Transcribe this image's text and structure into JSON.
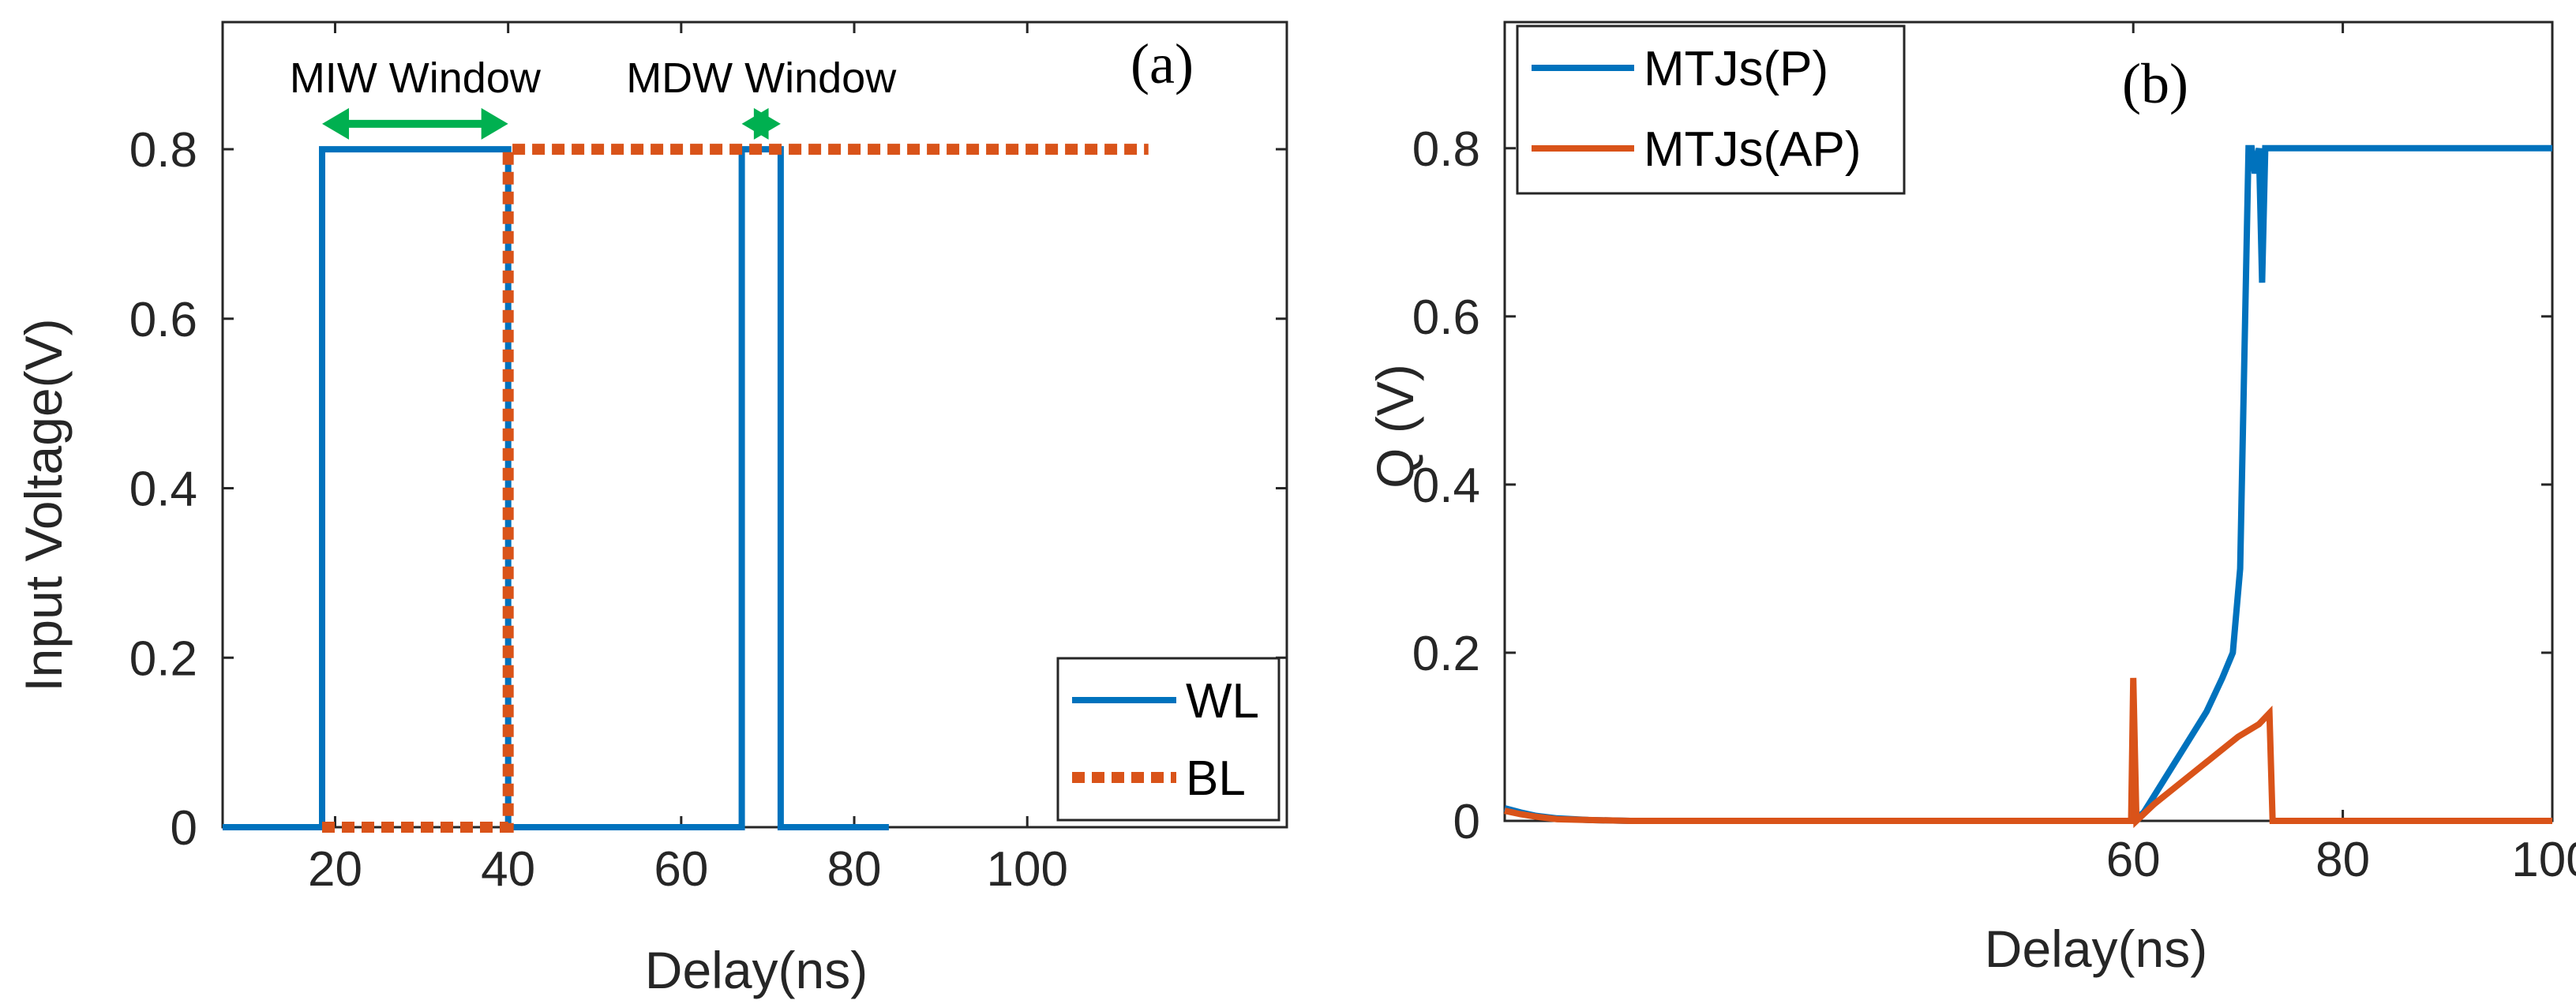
{
  "chart_data": [
    {
      "type": "line",
      "panel_label": "(a)",
      "xlabel": "Delay(ns)",
      "ylabel": "Input Voltage(V)",
      "xlim": [
        7,
        130
      ],
      "ylim": [
        0,
        0.95
      ],
      "xticks": [
        20,
        40,
        60,
        80,
        100
      ],
      "xtick_labels": [
        "20",
        "40",
        "60",
        "80",
        "100"
      ],
      "yticks": [
        0,
        0.2,
        0.4,
        0.6,
        0.8
      ],
      "ytick_labels": [
        "0",
        "0.2",
        "0.4",
        "0.6",
        "0.8"
      ],
      "grid": false,
      "legend_position": "bottom-right",
      "series": [
        {
          "name": "WL",
          "color": "#0072BD",
          "style": "solid",
          "x": [
            7,
            18.5,
            18.5,
            40,
            40,
            67,
            67,
            71.5,
            71.5,
            84
          ],
          "y": [
            0,
            0,
            0.8,
            0.8,
            0,
            0,
            0.8,
            0.8,
            0,
            0
          ]
        },
        {
          "name": "BL",
          "color": "#D95319",
          "style": "dotted",
          "x": [
            18.5,
            40,
            40,
            114
          ],
          "y": [
            0,
            0,
            0.8,
            0.8
          ]
        }
      ],
      "annotations": [
        {
          "text": "MIW Window",
          "x_range": [
            18.5,
            40
          ],
          "y": 0.83,
          "color": "#00B050"
        },
        {
          "text": "MDW Window",
          "x_range": [
            67,
            71.5
          ],
          "y": 0.83,
          "color": "#00B050"
        }
      ]
    },
    {
      "type": "line",
      "panel_label": "(b)",
      "xlabel": "Delay(ns)",
      "ylabel": "Q (V)",
      "xlim": [
        0,
        100
      ],
      "ylim": [
        0,
        0.95
      ],
      "xticks": [
        60,
        80,
        100
      ],
      "xtick_labels": [
        "60",
        "80",
        "100"
      ],
      "yticks": [
        0,
        0.2,
        0.4,
        0.6,
        0.8
      ],
      "ytick_labels": [
        "0",
        "0.2",
        "0.4",
        "0.6",
        "0.8"
      ],
      "grid": false,
      "legend_position": "top-left",
      "series": [
        {
          "name": "MTJs(P)",
          "color": "#0072BD",
          "style": "solid",
          "x": [
            0,
            1.5,
            3,
            5,
            8,
            12,
            60,
            61,
            63,
            65,
            67,
            68.5,
            69.5,
            70.2,
            70.6,
            71,
            71.3,
            71.6,
            72,
            72.3,
            72.6,
            73,
            73.3,
            100
          ],
          "y": [
            0.015,
            0.01,
            0.006,
            0.003,
            0.001,
            0,
            0,
            0.01,
            0.05,
            0.09,
            0.13,
            0.17,
            0.2,
            0.3,
            0.55,
            0.8,
            0.8,
            0.77,
            0.8,
            0.64,
            0.8,
            0.8,
            0.8,
            0.8
          ]
        },
        {
          "name": "MTJs(AP)",
          "color": "#D95319",
          "style": "solid",
          "x": [
            0,
            1.5,
            3,
            5,
            8,
            12,
            59.8,
            60,
            60.3,
            62,
            64,
            66,
            68,
            70,
            72,
            73,
            73.3,
            100
          ],
          "y": [
            0.012,
            0.008,
            0.005,
            0.002,
            0.001,
            0,
            0,
            0.17,
            0,
            0.02,
            0.04,
            0.06,
            0.08,
            0.1,
            0.115,
            0.128,
            0,
            0
          ]
        }
      ]
    }
  ]
}
